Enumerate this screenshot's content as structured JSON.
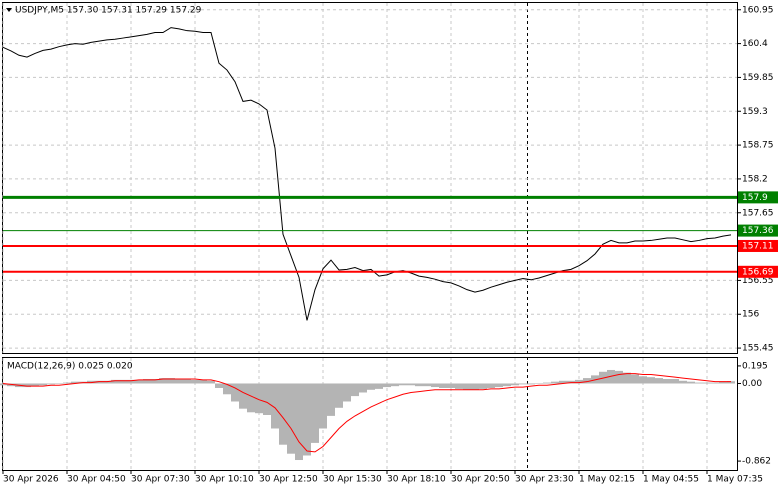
{
  "chart_data": [
    {
      "type": "line",
      "title": "USDJPY,M5  157.30 157.31 157.29 157.29",
      "ylim": [
        155.37,
        161.06
      ],
      "yticks": [
        160.95,
        160.4,
        159.85,
        159.3,
        158.75,
        158.2,
        157.65,
        156.55,
        156.0,
        155.45
      ],
      "grid": true,
      "color": "#000000",
      "values": [
        160.34,
        160.28,
        160.21,
        160.18,
        160.24,
        160.29,
        160.31,
        160.35,
        160.38,
        160.4,
        160.39,
        160.42,
        160.44,
        160.46,
        160.47,
        160.49,
        160.51,
        160.53,
        160.55,
        160.58,
        160.58,
        160.66,
        160.64,
        160.61,
        160.6,
        160.58,
        160.58,
        160.08,
        159.97,
        159.78,
        159.46,
        159.48,
        159.42,
        159.32,
        158.7,
        157.3,
        156.95,
        156.6,
        155.9,
        156.4,
        156.74,
        156.88,
        156.72,
        156.73,
        156.76,
        156.71,
        156.73,
        156.62,
        156.64,
        156.69,
        156.71,
        156.67,
        156.62,
        156.6,
        156.57,
        156.53,
        156.51,
        156.46,
        156.4,
        156.36,
        156.39,
        156.44,
        156.48,
        156.52,
        156.55,
        156.58,
        156.56,
        156.59,
        156.63,
        156.67,
        156.71,
        156.73,
        156.79,
        156.87,
        156.98,
        157.14,
        157.2,
        157.16,
        157.16,
        157.19,
        157.19,
        157.2,
        157.22,
        157.24,
        157.24,
        157.21,
        157.18,
        157.2,
        157.23,
        157.24,
        157.27,
        157.29
      ],
      "levels": [
        {
          "value": 157.9,
          "color": "#008000",
          "width": 3
        },
        {
          "value": 157.36,
          "color": "#008000",
          "width": 1
        },
        {
          "value": 157.11,
          "color": "#ff0000",
          "width": 2
        },
        {
          "value": 156.69,
          "color": "#ff0000",
          "width": 2
        }
      ]
    },
    {
      "type": "macd",
      "title": "MACD(12,26,9) 0.025 0.020",
      "ylim": [
        -0.961,
        0.283
      ],
      "yticks": [
        0.195,
        {
          "value": 0,
          "label": "0.00"
        },
        -0.862
      ],
      "categories": [
        "30 Apr 2026",
        null,
        null,
        null,
        null,
        null,
        null,
        null,
        "30 Apr 04:50",
        null,
        null,
        null,
        null,
        null,
        null,
        null,
        "30 Apr 07:30",
        null,
        null,
        null,
        null,
        null,
        null,
        null,
        "30 Apr 10:10",
        null,
        null,
        null,
        null,
        null,
        null,
        null,
        "30 Apr 12:50",
        null,
        null,
        null,
        null,
        null,
        null,
        null,
        "30 Apr 15:30",
        null,
        null,
        null,
        null,
        null,
        null,
        null,
        "30 Apr 18:10",
        null,
        null,
        null,
        null,
        null,
        null,
        null,
        "30 Apr 20:50",
        null,
        null,
        null,
        null,
        null,
        null,
        null,
        "30 Apr 23:30",
        null,
        null,
        null,
        null,
        null,
        null,
        null,
        "1 May 02:15",
        null,
        null,
        null,
        null,
        null,
        null,
        null,
        "1 May 04:55",
        null,
        null,
        null,
        null,
        null,
        null,
        null,
        "1 May 07:35",
        null,
        null,
        null
      ],
      "series": [
        {
          "kind": "bar",
          "color": "#b4b4b4",
          "values": [
            -0.02,
            -0.03,
            -0.04,
            -0.04,
            -0.03,
            -0.02,
            -0.01,
            0,
            0.01,
            0.02,
            0.02,
            0.03,
            0.03,
            0.03,
            0.04,
            0.04,
            0.04,
            0.04,
            0.05,
            0.05,
            0.06,
            0.06,
            0.05,
            0.05,
            0.04,
            0.04,
            0.03,
            -0.05,
            -0.12,
            -0.2,
            -0.28,
            -0.32,
            -0.33,
            -0.35,
            -0.5,
            -0.68,
            -0.78,
            -0.85,
            -0.8,
            -0.66,
            -0.5,
            -0.36,
            -0.27,
            -0.2,
            -0.14,
            -0.1,
            -0.07,
            -0.06,
            -0.04,
            -0.03,
            -0.02,
            -0.02,
            -0.03,
            -0.03,
            -0.04,
            -0.05,
            -0.05,
            -0.06,
            -0.07,
            -0.07,
            -0.06,
            -0.05,
            -0.04,
            -0.03,
            -0.02,
            -0.01,
            -0.01,
            0,
            0.01,
            0.02,
            0.03,
            0.03,
            0.04,
            0.06,
            0.09,
            0.13,
            0.15,
            0.14,
            0.12,
            0.1,
            0.08,
            0.07,
            0.06,
            0.05,
            0.05,
            0.03,
            0.02,
            0.01,
            0.01,
            0.01,
            0.02,
            0.025
          ]
        },
        {
          "kind": "line",
          "color": "#ff0000",
          "values": [
            0,
            -0.01,
            -0.02,
            -0.03,
            -0.03,
            -0.03,
            -0.02,
            -0.02,
            -0.01,
            0,
            0.01,
            0.01,
            0.02,
            0.02,
            0.03,
            0.03,
            0.03,
            0.04,
            0.04,
            0.04,
            0.05,
            0.05,
            0.05,
            0.05,
            0.05,
            0.04,
            0.04,
            0.02,
            -0.01,
            -0.05,
            -0.1,
            -0.14,
            -0.18,
            -0.21,
            -0.27,
            -0.38,
            -0.5,
            -0.65,
            -0.75,
            -0.76,
            -0.7,
            -0.6,
            -0.5,
            -0.42,
            -0.36,
            -0.31,
            -0.26,
            -0.22,
            -0.18,
            -0.15,
            -0.12,
            -0.1,
            -0.09,
            -0.08,
            -0.07,
            -0.07,
            -0.07,
            -0.07,
            -0.07,
            -0.07,
            -0.07,
            -0.06,
            -0.06,
            -0.05,
            -0.04,
            -0.04,
            -0.03,
            -0.02,
            -0.02,
            -0.01,
            0,
            0.01,
            0.01,
            0.02,
            0.04,
            0.06,
            0.08,
            0.1,
            0.11,
            0.11,
            0.1,
            0.1,
            0.09,
            0.08,
            0.07,
            0.06,
            0.05,
            0.04,
            0.03,
            0.02,
            0.02,
            0.02
          ]
        }
      ]
    }
  ]
}
